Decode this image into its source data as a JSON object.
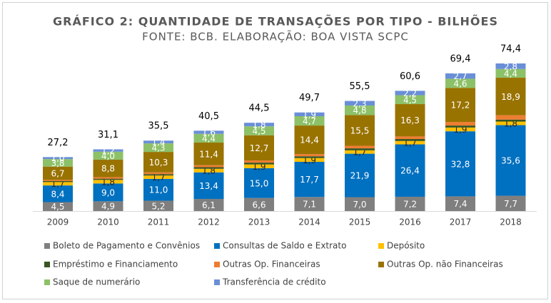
{
  "chart_data": {
    "type": "stacked_bar",
    "title": "GRÁFICO 2: QUANTIDADE DE TRANSAÇÕES POR TIPO - BILHÕES",
    "subtitle": "FONTE: BCB. ELABORAÇÃO: BOA VISTA SCPC",
    "categories": [
      "2009",
      "2010",
      "2011",
      "2012",
      "2013",
      "2014",
      "2015",
      "2016",
      "2017",
      "2018"
    ],
    "series": [
      {
        "name": "Boleto de Pagamento e Convênios",
        "color": "#7f7f7f",
        "values": [
          4.5,
          4.9,
          5.2,
          6.1,
          6.6,
          7.1,
          7.0,
          7.2,
          7.4,
          7.7
        ],
        "value_labels": [
          "4,5",
          "4,9",
          "5,2",
          "6,1",
          "6,6",
          "7,1",
          "7,0",
          "7,2",
          "7,4",
          "7,7"
        ]
      },
      {
        "name": "Consultas de Saldo e Extrato",
        "color": "#0070c0",
        "values": [
          8.4,
          9.0,
          11.0,
          13.4,
          15.0,
          17.7,
          21.9,
          26.4,
          32.8,
          35.6
        ],
        "value_labels": [
          "8,4",
          "9,0",
          "11,0",
          "13,4",
          "15,0",
          "17,7",
          "21,9",
          "26,4",
          "32,8",
          "35,6"
        ]
      },
      {
        "name": "Depósito",
        "color": "#ffc000",
        "values": [
          1.7,
          1.8,
          1.7,
          1.8,
          1.9,
          1.9,
          1.7,
          1.7,
          1.9,
          1.8
        ],
        "value_labels": [
          "1,7",
          "1,8",
          "1,7",
          "1,8",
          "1,9",
          "1,9",
          "1,7",
          "1,7",
          "1,9",
          "1,8"
        ]
      },
      {
        "name": "Empréstimo e Financiamento",
        "color": "#375623",
        "values": [
          0.5,
          0.6,
          0.7,
          0.8,
          0.9,
          0.9,
          1.0,
          1.0,
          1.0,
          1.0
        ]
      },
      {
        "name": "Outras Op. Financeiras",
        "color": "#ed7d31",
        "values": [
          0.6,
          0.8,
          0.9,
          1.0,
          1.1,
          1.1,
          1.3,
          1.3,
          1.8,
          2.2
        ]
      },
      {
        "name": "Outras Op. não Financeiras",
        "color": "#997300",
        "values": [
          6.7,
          8.8,
          10.3,
          11.4,
          12.7,
          14.4,
          15.5,
          16.3,
          17.2,
          18.9
        ],
        "value_labels": [
          "6,7",
          "8,8",
          "10,3",
          "11,4",
          "12,7",
          "14,4",
          "15,5",
          "16,3",
          "17,2",
          "18,9"
        ]
      },
      {
        "name": "Saque de numerário",
        "color": "#8cc168",
        "values": [
          3.8,
          4.0,
          4.3,
          4.4,
          4.5,
          4.7,
          4.8,
          4.5,
          4.6,
          4.4
        ],
        "value_labels": [
          "3,8",
          "4,0",
          "4,3",
          "4,4",
          "4,5",
          "4,7",
          "4,8",
          "4,5",
          "4,6",
          "4,4"
        ]
      },
      {
        "name": "Transferência de crédito",
        "color": "#6a8fd8",
        "values": [
          1.0,
          1.2,
          1.4,
          1.6,
          1.8,
          1.9,
          2.3,
          2.2,
          2.7,
          2.8
        ],
        "value_labels": [
          "1,0",
          "1,2",
          "1,4",
          "1,6",
          "1,8",
          "1,9",
          "2,3",
          "2,2",
          "2,7",
          "2,8"
        ]
      }
    ],
    "totals": {
      "values": [
        27.2,
        31.1,
        35.5,
        40.5,
        44.5,
        49.7,
        55.5,
        60.6,
        69.4,
        74.4
      ],
      "value_labels": [
        "27,2",
        "31,1",
        "35,5",
        "40,5",
        "44,5",
        "49,7",
        "55,5",
        "60,6",
        "69,4",
        "74,4"
      ]
    }
  }
}
